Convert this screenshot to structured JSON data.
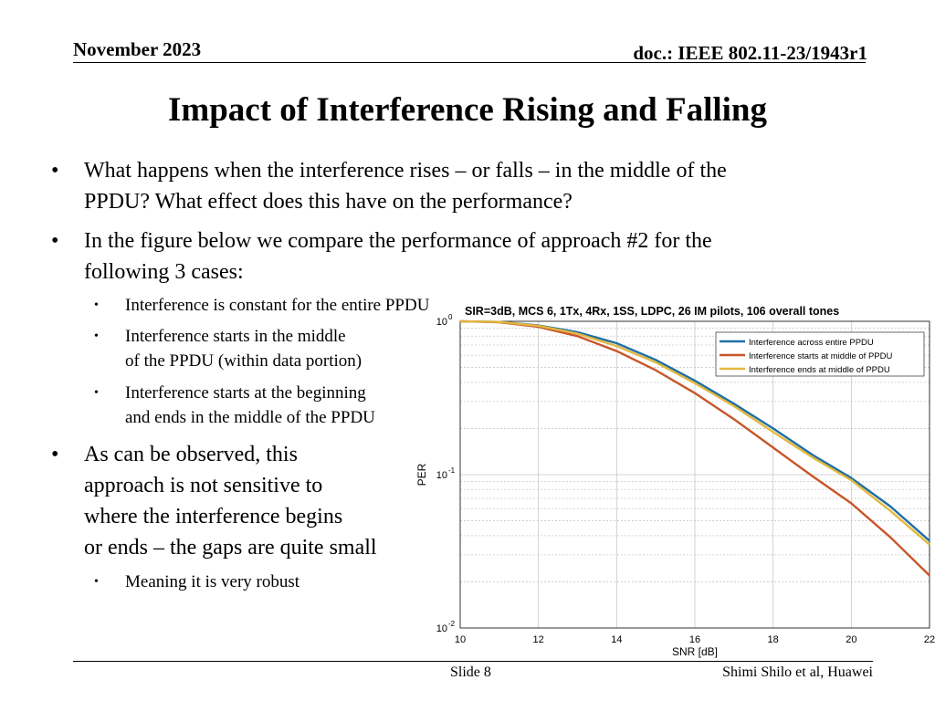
{
  "header": {
    "date": "November 2023",
    "doc": "doc.: IEEE 802.11-23/1943r1"
  },
  "title": "Impact of Interference Rising and Falling",
  "bullets": {
    "b1_line1": "What happens when the interference rises – or falls – in the middle of the",
    "b1_line2": "PPDU? What effect does this have on the performance?",
    "b2_line1": "In the figure below we compare the performance of approach #2 for the",
    "b2_line2": "following 3 cases:",
    "s1": "Interference is constant for the entire PPDU",
    "s2_line1": "Interference starts in the middle",
    "s2_line2": "of the PPDU (within data portion)",
    "s3_line1": "Interference starts at the beginning",
    "s3_line2": "and ends in the middle of the PPDU",
    "b3_line1": "As can be observed, this",
    "b3_line2": "approach is not sensitive to",
    "b3_line3": "where the interference begins",
    "b3_line4": "or ends – the gaps are quite small",
    "s4": "Meaning it is very robust",
    "bullet_char": "•"
  },
  "footer": {
    "slide": "Slide 8",
    "author": "Shimi Shilo et al, Huawei"
  },
  "chart_data": {
    "type": "line",
    "title": "SIR=3dB, MCS 6, 1Tx, 4Rx, 1SS, LDPC, 26 IM pilots, 106 overall tones",
    "xlabel": "SNR [dB]",
    "ylabel": "PER",
    "xlim": [
      10,
      22
    ],
    "ylim": [
      0.01,
      1
    ],
    "yscale": "log",
    "grid": true,
    "legend_position": "top-right",
    "xticks": [
      "10",
      "12",
      "14",
      "16",
      "18",
      "20",
      "22"
    ],
    "yticks": [
      {
        "base": "10",
        "exp": "0",
        "value": 1
      },
      {
        "base": "10",
        "exp": "-1",
        "value": 0.1
      },
      {
        "base": "10",
        "exp": "-2",
        "value": 0.01
      }
    ],
    "x": [
      10,
      11,
      12,
      13,
      14,
      15,
      16,
      17,
      18,
      19,
      20,
      21,
      22
    ],
    "series": [
      {
        "name": "Interference across entire PPDU",
        "color": "#1f6fa5",
        "values": [
          1.0,
          0.99,
          0.94,
          0.85,
          0.72,
          0.56,
          0.41,
          0.29,
          0.2,
          0.135,
          0.095,
          0.062,
          0.037
        ]
      },
      {
        "name": "Interference starts at middle of PPDU",
        "color": "#c8552a",
        "values": [
          1.0,
          0.985,
          0.92,
          0.8,
          0.64,
          0.48,
          0.34,
          0.23,
          0.15,
          0.098,
          0.065,
          0.039,
          0.022
        ]
      },
      {
        "name": "Interference ends at middle of PPDU",
        "color": "#e3b83f",
        "values": [
          1.0,
          0.99,
          0.935,
          0.83,
          0.69,
          0.54,
          0.395,
          0.28,
          0.19,
          0.13,
          0.092,
          0.058,
          0.035
        ]
      }
    ]
  }
}
